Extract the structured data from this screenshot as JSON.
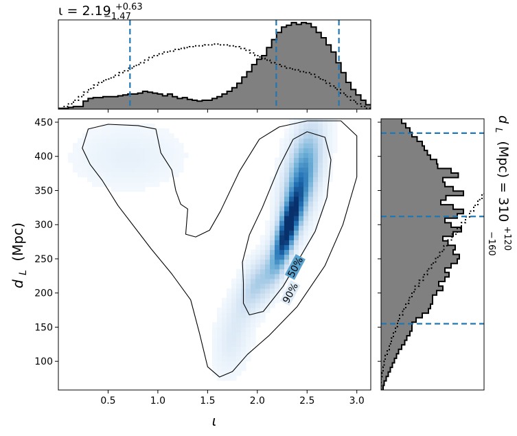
{
  "chart_data": [
    {
      "type": "heatmap",
      "xlabel": "ι",
      "ylabel_main": "d",
      "ylabel_sub": "L",
      "ylabel_unit": "(Mpc)",
      "xlim": [
        0.0,
        3.14
      ],
      "ylim": [
        58,
        455
      ],
      "xticks": [
        0.5,
        1.0,
        1.5,
        2.0,
        2.5,
        3.0
      ],
      "xtick_labels": [
        "0.5",
        "1.0",
        "1.5",
        "2.0",
        "2.5",
        "3.0"
      ],
      "yticks": [
        100,
        150,
        200,
        250,
        300,
        350,
        400,
        450
      ],
      "ytick_labels": [
        "100",
        "150",
        "200",
        "250",
        "300",
        "350",
        "400",
        "450"
      ],
      "colormap": [
        "#f7fbff",
        "#c6dbef",
        "#6baed6",
        "#2171b5",
        "#08306b"
      ],
      "contours": [
        {
          "label": "50%",
          "points": [
            [
              1.86,
              215
            ],
            [
              1.85,
              245
            ],
            [
              1.92,
              285
            ],
            [
              2.05,
              325
            ],
            [
              2.22,
              385
            ],
            [
              2.36,
              425
            ],
            [
              2.5,
              436
            ],
            [
              2.68,
              428
            ],
            [
              2.74,
              395
            ],
            [
              2.7,
              340
            ],
            [
              2.58,
              290
            ],
            [
              2.42,
              250
            ],
            [
              2.26,
              210
            ],
            [
              2.06,
              173
            ],
            [
              1.92,
              168
            ],
            [
              1.86,
              185
            ]
          ]
        },
        {
          "label": "90%",
          "points": [
            [
              1.62,
              77
            ],
            [
              1.5,
              92
            ],
            [
              1.42,
              140
            ],
            [
              1.33,
              190
            ],
            [
              1.14,
              228
            ],
            [
              0.93,
              265
            ],
            [
              0.6,
              328
            ],
            [
              0.44,
              365
            ],
            [
              0.32,
              388
            ],
            [
              0.24,
              412
            ],
            [
              0.3,
              440
            ],
            [
              0.5,
              447
            ],
            [
              0.8,
              445
            ],
            [
              0.98,
              440
            ],
            [
              1.03,
              405
            ],
            [
              1.14,
              380
            ],
            [
              1.18,
              350
            ],
            [
              1.23,
              330
            ],
            [
              1.3,
              323
            ],
            [
              1.28,
              286
            ],
            [
              1.38,
              282
            ],
            [
              1.52,
              292
            ],
            [
              1.63,
              320
            ],
            [
              1.82,
              378
            ],
            [
              2.02,
              425
            ],
            [
              2.22,
              443
            ],
            [
              2.5,
              452
            ],
            [
              2.84,
              452
            ],
            [
              3.0,
              430
            ],
            [
              3.0,
              370
            ],
            [
              2.86,
              300
            ],
            [
              2.68,
              240
            ],
            [
              2.4,
              180
            ],
            [
              2.12,
              138
            ],
            [
              1.9,
              110
            ],
            [
              1.75,
              85
            ]
          ]
        }
      ],
      "density_components": [
        {
          "x": 2.3,
          "y": 292,
          "sx": 0.1,
          "sy": 40,
          "rho": 0.75,
          "w": 1.0
        },
        {
          "x": 2.45,
          "y": 372,
          "sx": 0.13,
          "sy": 50,
          "rho": 0.5,
          "w": 0.6
        },
        {
          "x": 2.0,
          "y": 215,
          "sx": 0.13,
          "sy": 30,
          "rho": 0.6,
          "w": 0.32
        },
        {
          "x": 1.75,
          "y": 135,
          "sx": 0.12,
          "sy": 35,
          "rho": 0.3,
          "w": 0.12
        },
        {
          "x": 0.7,
          "y": 400,
          "sx": 0.35,
          "sy": 30,
          "rho": 0.0,
          "w": 0.08
        }
      ]
    },
    {
      "type": "histogram",
      "title_symbol": "ι",
      "title_value": "2.19",
      "title_plus": "+0.63",
      "title_minus": "−1.47",
      "xlim": [
        0.0,
        3.14
      ],
      "bin_edges_range": [
        0.0,
        3.14
      ],
      "posterior_counts": [
        0.01,
        0.01,
        0.02,
        0.03,
        0.03,
        0.09,
        0.12,
        0.13,
        0.13,
        0.14,
        0.14,
        0.14,
        0.15,
        0.16,
        0.17,
        0.17,
        0.18,
        0.2,
        0.19,
        0.18,
        0.17,
        0.15,
        0.17,
        0.14,
        0.12,
        0.13,
        0.11,
        0.1,
        0.09,
        0.1,
        0.1,
        0.12,
        0.14,
        0.17,
        0.2,
        0.24,
        0.29,
        0.36,
        0.42,
        0.5,
        0.56,
        0.6,
        0.69,
        0.78,
        0.86,
        0.92,
        0.94,
        0.97,
        0.95,
        0.97,
        0.96,
        0.92,
        0.86,
        0.8,
        0.72,
        0.64,
        0.52,
        0.41,
        0.3,
        0.22,
        0.16,
        0.1,
        0.05
      ],
      "prior_counts": [
        0.01,
        0.03,
        0.06,
        0.1,
        0.14,
        0.19,
        0.23,
        0.27,
        0.3,
        0.33,
        0.35,
        0.38,
        0.41,
        0.43,
        0.46,
        0.49,
        0.52,
        0.55,
        0.58,
        0.6,
        0.62,
        0.64,
        0.65,
        0.67,
        0.68,
        0.69,
        0.7,
        0.71,
        0.71,
        0.72,
        0.72,
        0.73,
        0.72,
        0.72,
        0.71,
        0.7,
        0.68,
        0.66,
        0.63,
        0.6,
        0.57,
        0.55,
        0.52,
        0.5,
        0.48,
        0.46,
        0.45,
        0.44,
        0.42,
        0.41,
        0.39,
        0.36,
        0.33,
        0.29,
        0.26,
        0.22,
        0.18,
        0.14,
        0.1,
        0.06,
        0.03,
        0.01
      ],
      "quantiles": [
        0.72,
        2.19,
        2.82
      ]
    },
    {
      "type": "histogram",
      "orientation": "horizontal",
      "side_label_main": "d",
      "side_label_sub": "L",
      "side_label_unit": "(Mpc) = 310",
      "side_label_plus": "+120",
      "side_label_minus": "−160",
      "ylim": [
        58,
        455
      ],
      "bin_edges_range": [
        58,
        455
      ],
      "posterior_counts": [
        0.02,
        0.03,
        0.05,
        0.07,
        0.09,
        0.11,
        0.13,
        0.15,
        0.17,
        0.2,
        0.23,
        0.25,
        0.28,
        0.3,
        0.3,
        0.34,
        0.4,
        0.46,
        0.48,
        0.5,
        0.5,
        0.54,
        0.6,
        0.56,
        0.62,
        0.66,
        0.62,
        0.68,
        0.74,
        0.76,
        0.7,
        0.72,
        0.65,
        0.6,
        0.7,
        0.78,
        0.68,
        0.62,
        0.74,
        0.8,
        0.7,
        0.58,
        0.63,
        0.8,
        0.7,
        0.62,
        0.6,
        0.75,
        0.68,
        0.55,
        0.54,
        0.48,
        0.45,
        0.42,
        0.4,
        0.35,
        0.3,
        0.28,
        0.24,
        0.2
      ],
      "prior_counts": [
        0.0,
        0.0,
        0.01,
        0.02,
        0.03,
        0.04,
        0.06,
        0.08,
        0.1,
        0.12,
        0.14,
        0.16,
        0.18,
        0.21,
        0.24,
        0.27,
        0.3,
        0.33,
        0.37,
        0.41,
        0.45,
        0.49,
        0.53,
        0.57,
        0.61,
        0.65,
        0.69,
        0.74,
        0.78,
        0.82,
        0.86,
        0.9,
        0.94,
        0.98,
        1.02,
        1.06,
        1.1,
        1.14,
        1.18,
        1.22,
        1.26,
        1.3,
        1.34,
        1.38,
        1.42,
        1.46,
        1.5
      ],
      "quantiles": [
        155,
        312,
        434
      ]
    }
  ]
}
